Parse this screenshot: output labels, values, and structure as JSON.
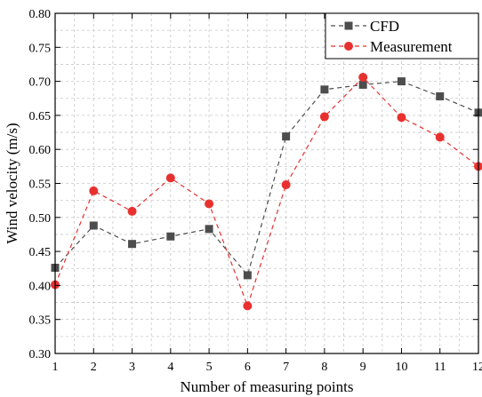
{
  "chart_data": {
    "type": "line",
    "x": [
      1,
      2,
      3,
      4,
      5,
      6,
      7,
      8,
      9,
      10,
      11,
      12
    ],
    "xticks": [
      "1",
      "2",
      "3",
      "4",
      "5",
      "6",
      "7",
      "8",
      "9",
      "10",
      "11",
      "12"
    ],
    "yticks": [
      "0.30",
      "0.35",
      "0.40",
      "0.45",
      "0.50",
      "0.55",
      "0.60",
      "0.65",
      "0.70",
      "0.75",
      "0.80"
    ],
    "xlabel": "Number of measuring points",
    "ylabel": "Wind velocity (m/s)",
    "xlim": [
      1,
      12
    ],
    "ylim": [
      0.3,
      0.8
    ],
    "grid": true,
    "legend_position": "top-right",
    "series": [
      {
        "name": "CFD",
        "marker": "square",
        "color": "#4d4d4d",
        "values": [
          0.426,
          0.488,
          0.461,
          0.472,
          0.483,
          0.415,
          0.619,
          0.688,
          0.695,
          0.7,
          0.678,
          0.654
        ]
      },
      {
        "name": "Measurement",
        "marker": "circle",
        "color": "#e8312f",
        "values": [
          0.401,
          0.539,
          0.509,
          0.558,
          0.52,
          0.37,
          0.548,
          0.648,
          0.706,
          0.647,
          0.618,
          0.575
        ]
      }
    ]
  }
}
